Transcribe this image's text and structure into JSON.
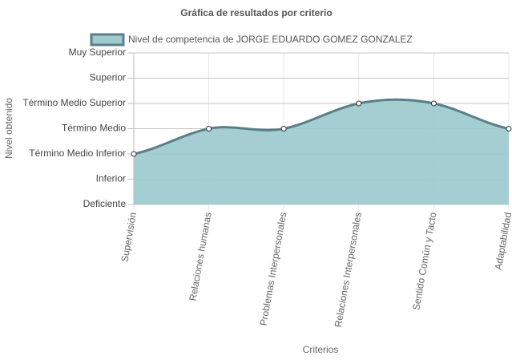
{
  "chart_data": {
    "type": "area",
    "title": "Gráfica de resultados por criterio",
    "x_label": "Criterios",
    "y_label": "Nivel obtenido",
    "categories": [
      "Supervisión",
      "Relaciones humanas",
      "Problemas Interpersonales",
      "Relaciones Interpersonales",
      "Sentido Común y Tacto",
      "Adaptabilidad"
    ],
    "series": [
      {
        "name": "Nivel de competencia de JORGE EDUARDO GOMEZ GONZALEZ",
        "color": "#5a7f87",
        "fill": "#9fcbcf",
        "values": [
          3,
          4,
          4,
          5,
          5,
          4
        ]
      }
    ],
    "ylim": [
      1,
      7
    ],
    "yticks": [
      {
        "value": 1,
        "label": "Deficiente"
      },
      {
        "value": 2,
        "label": "Inferior"
      },
      {
        "value": 3,
        "label": "Término Medio Inferior"
      },
      {
        "value": 4,
        "label": "Término Medio"
      },
      {
        "value": 5,
        "label": "Término Medio Superior"
      },
      {
        "value": 6,
        "label": "Superior"
      },
      {
        "value": 7,
        "label": "Muy Superior"
      }
    ],
    "grid": true,
    "legend": "top"
  }
}
